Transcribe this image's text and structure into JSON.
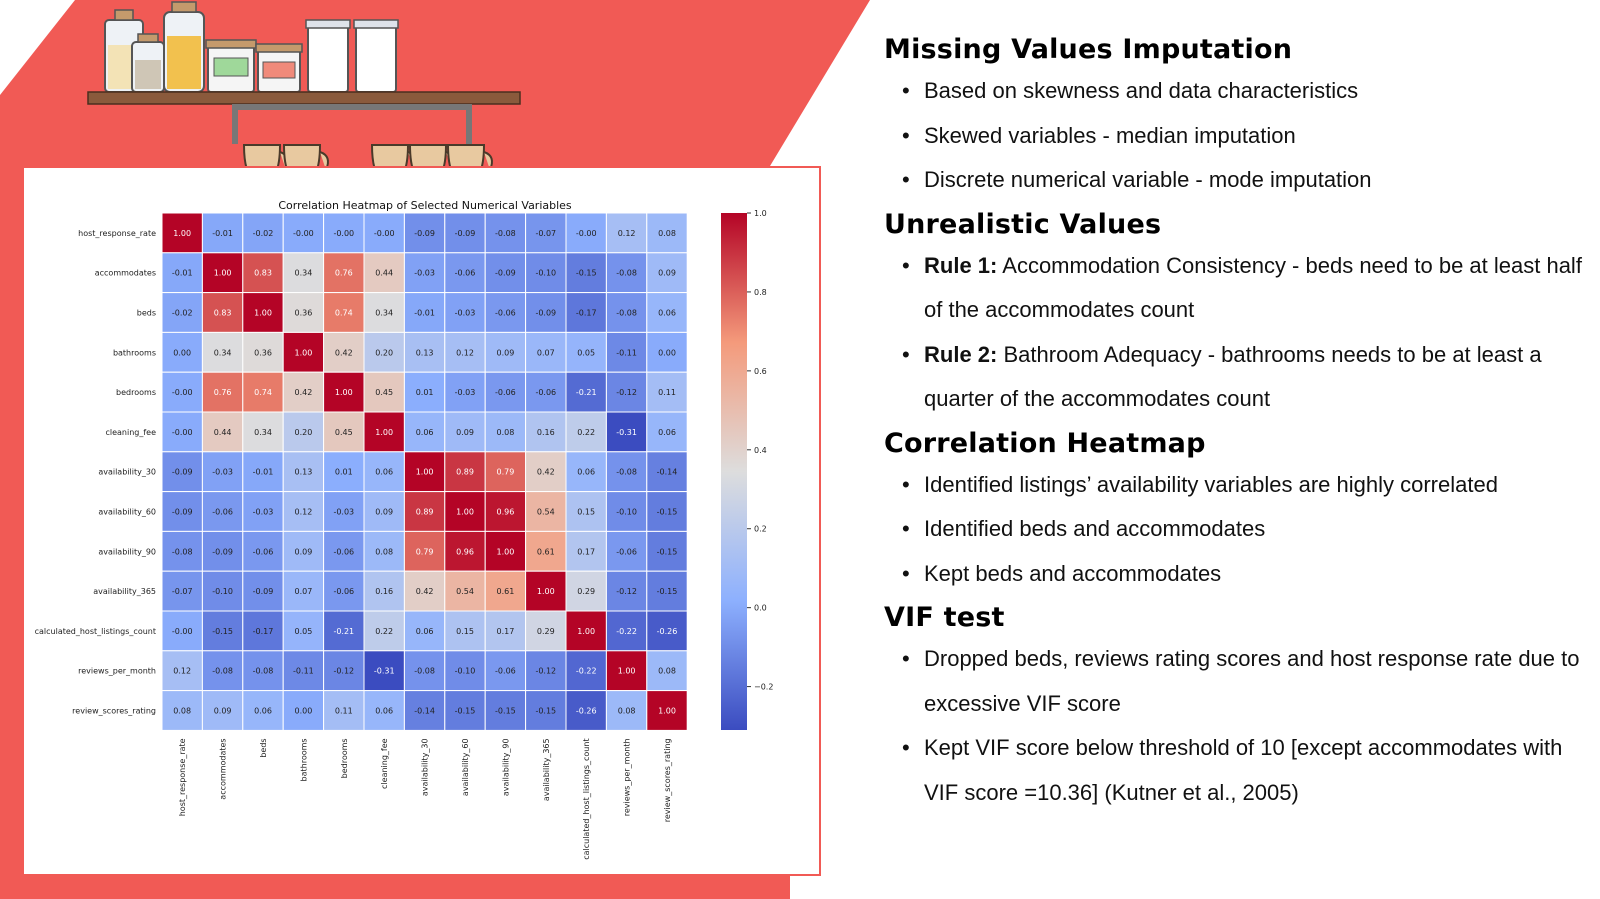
{
  "colors": {
    "accent_red": "#f15a55",
    "heatmap_low": "#3b4cc0",
    "heatmap_mid": "#dddddd",
    "heatmap_high": "#b40426"
  },
  "sections": [
    {
      "title": "Missing Values Imputation",
      "bullets": [
        {
          "bold": "",
          "text": "Based on skewness and data characteristics"
        },
        {
          "bold": "",
          "text": "Skewed variables - median imputation"
        },
        {
          "bold": "",
          "text": "Discrete numerical variable - mode imputation"
        }
      ]
    },
    {
      "title": "Unrealistic Values",
      "bullets": [
        {
          "bold": "Rule 1:",
          "text": "Accommodation Consistency - beds need to be at least half of the accommodates count"
        },
        {
          "bold": "Rule 2:",
          "text": "Bathroom Adequacy - bathrooms needs to be at least a quarter of the accommodates count"
        }
      ]
    },
    {
      "title": "Correlation Heatmap",
      "bullets": [
        {
          "bold": "",
          "text": "Identified listings’ availability variables are highly correlated"
        },
        {
          "bold": "",
          "text": "Identified beds and accommodates"
        },
        {
          "bold": "",
          "text": "Kept beds and accommodates"
        }
      ]
    },
    {
      "title": "VIF test",
      "bullets": [
        {
          "bold": "",
          "text": "Dropped beds, reviews rating scores and host response rate due to excessive VIF score"
        },
        {
          "bold": "",
          "text": "Kept VIF score below threshold of 10 [except accommodates with VIF score =10.36] (Kutner et al., 2005)"
        }
      ]
    }
  ],
  "chart_data": {
    "type": "heatmap",
    "title": "Correlation Heatmap of Selected Numerical Variables",
    "variables": [
      "host_response_rate",
      "accommodates",
      "beds",
      "bathrooms",
      "bedrooms",
      "cleaning_fee",
      "availability_30",
      "availability_60",
      "availability_90",
      "availability_365",
      "calculated_host_listings_count",
      "reviews_per_month",
      "review_scores_rating"
    ],
    "matrix": [
      [
        1.0,
        -0.01,
        -0.02,
        -0.0,
        -0.0,
        -0.0,
        -0.09,
        -0.09,
        -0.08,
        -0.07,
        -0.0,
        0.12,
        0.08
      ],
      [
        -0.01,
        1.0,
        0.83,
        0.34,
        0.76,
        0.44,
        -0.03,
        -0.06,
        -0.09,
        -0.1,
        -0.15,
        -0.08,
        0.09
      ],
      [
        -0.02,
        0.83,
        1.0,
        0.36,
        0.74,
        0.34,
        -0.01,
        -0.03,
        -0.06,
        -0.09,
        -0.17,
        -0.08,
        0.06
      ],
      [
        -0.0,
        0.34,
        0.36,
        1.0,
        0.42,
        0.2,
        0.13,
        0.12,
        0.09,
        0.07,
        0.05,
        -0.11,
        0.0
      ],
      [
        -0.0,
        0.76,
        0.74,
        0.42,
        1.0,
        0.45,
        0.01,
        -0.03,
        -0.06,
        -0.06,
        -0.21,
        -0.12,
        0.11
      ],
      [
        -0.0,
        0.44,
        0.34,
        0.2,
        0.45,
        1.0,
        0.06,
        0.09,
        0.08,
        0.16,
        0.22,
        -0.31,
        0.06
      ],
      [
        -0.09,
        -0.03,
        -0.01,
        0.13,
        0.01,
        0.06,
        1.0,
        0.89,
        0.79,
        0.42,
        0.06,
        -0.08,
        -0.14
      ],
      [
        -0.09,
        -0.06,
        -0.03,
        0.12,
        -0.03,
        0.09,
        0.89,
        1.0,
        0.96,
        0.54,
        0.15,
        -0.1,
        -0.15
      ],
      [
        -0.08,
        -0.09,
        -0.06,
        0.09,
        -0.06,
        0.08,
        0.79,
        0.96,
        1.0,
        0.61,
        0.17,
        -0.06,
        -0.15
      ],
      [
        -0.07,
        -0.1,
        -0.09,
        0.07,
        -0.06,
        0.16,
        0.42,
        0.54,
        0.61,
        1.0,
        0.29,
        -0.12,
        -0.15
      ],
      [
        -0.0,
        -0.15,
        -0.17,
        0.05,
        -0.21,
        0.22,
        0.06,
        0.15,
        0.17,
        0.29,
        1.0,
        -0.22,
        -0.26
      ],
      [
        0.12,
        -0.08,
        -0.08,
        -0.11,
        -0.12,
        -0.31,
        -0.08,
        -0.1,
        -0.06,
        -0.12,
        -0.22,
        1.0,
        0.08
      ],
      [
        0.08,
        0.09,
        0.06,
        0.0,
        0.11,
        0.06,
        -0.14,
        -0.15,
        -0.15,
        -0.15,
        -0.26,
        0.08,
        1.0
      ]
    ],
    "colorbar_range": [
      -0.31,
      1.0
    ],
    "colorbar_ticks": [
      "1.0",
      "0.8",
      "0.6",
      "0.4",
      "0.2",
      "0.0",
      "−0.2"
    ]
  }
}
